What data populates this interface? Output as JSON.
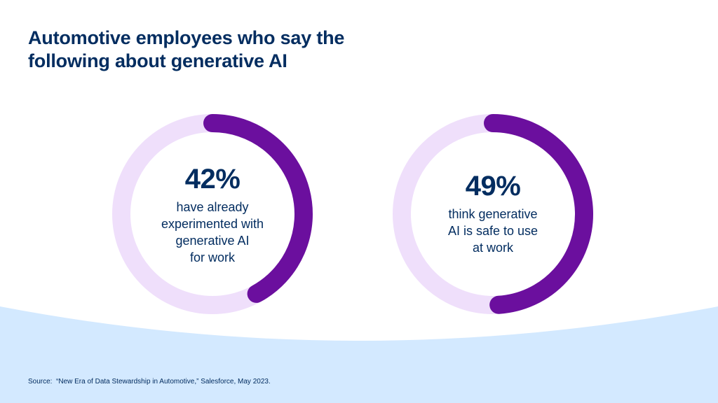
{
  "title": "Automotive employees who say the following about generative AI",
  "chart_data": [
    {
      "type": "pie",
      "title": "",
      "values": [
        42,
        58
      ],
      "value_label": "42%",
      "caption": "have already\nexperimented with\ngenerative AI\nfor work",
      "colors": {
        "fill": "#6b0f9e",
        "track": "#efdffb"
      }
    },
    {
      "type": "pie",
      "title": "",
      "values": [
        49,
        51
      ],
      "value_label": "49%",
      "caption": "think generative\nAI is safe to use\nat work",
      "colors": {
        "fill": "#6b0f9e",
        "track": "#efdffb"
      }
    }
  ],
  "source": "Source:  “New Era of Data Stewardship in Automotive,” Salesforce, May 2023.",
  "colors": {
    "title": "#032d60",
    "background_wave": "#d3e9ff"
  }
}
